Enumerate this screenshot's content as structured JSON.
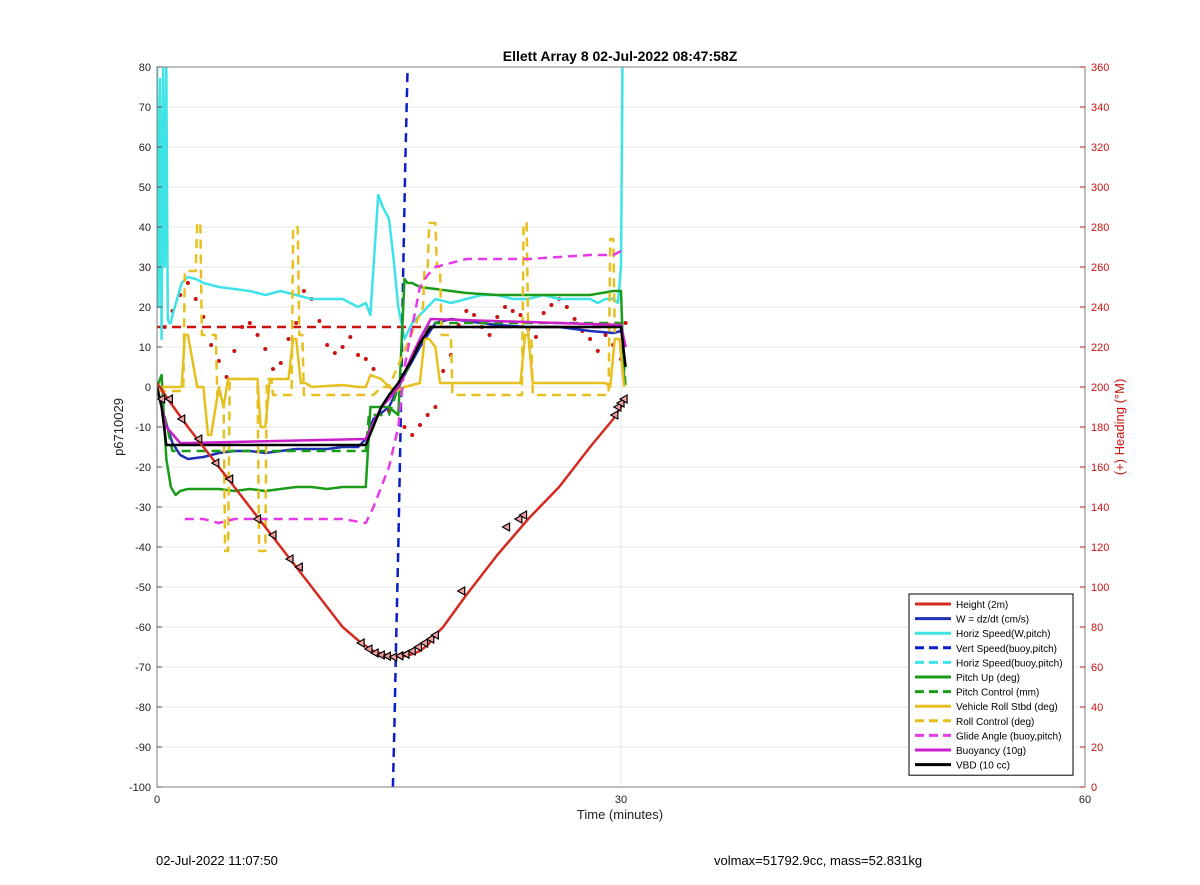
{
  "chart_data": {
    "type": "line",
    "title": "Ellett Array 8 02-Jul-2022 08:47:58Z",
    "xlabel": "Time (minutes)",
    "ylabel": "p6710029",
    "y2label": "(+) Heading (°M)",
    "xlim": [
      0,
      60
    ],
    "ylim": [
      -100,
      80
    ],
    "y2lim": [
      0,
      360
    ],
    "xticks": [
      0,
      30,
      60
    ],
    "yticks": [
      -100,
      -90,
      -80,
      -70,
      -60,
      -50,
      -40,
      -30,
      -20,
      -10,
      0,
      10,
      20,
      30,
      40,
      50,
      60,
      70,
      80
    ],
    "y2ticks": [
      0,
      20,
      40,
      60,
      80,
      100,
      120,
      140,
      160,
      180,
      200,
      220,
      240,
      260,
      280,
      300,
      320,
      340,
      360
    ],
    "grid": true,
    "legend_position": "bottom-right",
    "series": [
      {
        "name": "Height (2m)",
        "color": "#d42a1f",
        "style": "solid",
        "x": [
          0,
          0.7,
          2.0,
          4.0,
          6.0,
          8.0,
          10.0,
          12.0,
          13.2,
          14.0,
          15.0,
          15.5,
          16.0,
          16.5,
          17.0,
          17.5,
          18.0,
          18.5,
          20.0,
          22.0,
          24.0,
          26.0,
          28.0,
          29.5,
          30.0,
          30.3
        ],
        "y": [
          1,
          -3,
          -10,
          -20,
          -30,
          -40,
          -50,
          -60,
          -64,
          -66,
          -67.2,
          -67.5,
          -67.3,
          -66.8,
          -66,
          -64.5,
          -62,
          -60,
          -52,
          -42,
          -33,
          -25,
          -15,
          -8,
          -5,
          -3
        ]
      },
      {
        "name": "W = dz/dt (cm/s)",
        "color": "#1f2fb8",
        "style": "solid",
        "x": [
          0,
          0.5,
          1.0,
          1.5,
          2.0,
          3.0,
          4.0,
          5.0,
          6.0,
          7.0,
          8.0,
          9.0,
          10.0,
          11.0,
          12.0,
          13.0,
          13.5,
          14.0,
          15.0,
          16.0,
          17.0,
          18.0,
          19.0,
          20.0,
          22.0,
          24.0,
          26.0,
          28.0,
          29.5,
          30.0,
          30.3
        ],
        "y": [
          0,
          -8,
          -14,
          -17,
          -18,
          -17.5,
          -16.5,
          -16,
          -16,
          -16.5,
          -16,
          -15.5,
          -15.5,
          -15.5,
          -15,
          -15,
          -13,
          -8,
          -5,
          3,
          10,
          16,
          17,
          16.5,
          15.5,
          15,
          15,
          14,
          13.5,
          14,
          10
        ]
      },
      {
        "name": "Horiz Speed(W,pitch)",
        "color": "#3ee3e6",
        "style": "solid",
        "x": [
          0,
          0.1,
          0.2,
          0.3,
          0.4,
          0.5,
          0.6,
          0.7,
          0.8,
          0.9,
          1.0,
          1.3,
          1.6,
          2.0,
          2.5,
          3.0,
          4.0,
          5.0,
          6.0,
          7.0,
          8.0,
          9.0,
          10.0,
          11.0,
          12.0,
          13.0,
          13.5,
          13.8,
          14.0,
          14.3,
          14.6,
          15.0,
          15.3,
          15.6,
          16.0,
          16.5,
          17.0,
          18.0,
          19.0,
          20.0,
          21.0,
          22.0,
          23.0,
          24.0,
          25.0,
          26.0,
          27.0,
          28.0,
          28.5,
          29.0,
          29.5,
          29.8,
          30.0,
          30.1
        ],
        "y": [
          80,
          20,
          77,
          12,
          80,
          30,
          80,
          17,
          16,
          16,
          18,
          22,
          26,
          27.5,
          27,
          26,
          25,
          24.5,
          24,
          23,
          24,
          23,
          22,
          22,
          22,
          20,
          21,
          18,
          30,
          48,
          45,
          42,
          32,
          20,
          12,
          16,
          18,
          22,
          21,
          22,
          23,
          23,
          22,
          22,
          23,
          22,
          22,
          22,
          21,
          22,
          22,
          21,
          30,
          80
        ]
      },
      {
        "name": "Vert Speed(buoy,pitch)",
        "color": "#0a1fc8",
        "style": "dashed",
        "x": [
          15.25,
          15.35,
          15.45,
          15.6,
          15.75,
          15.9,
          16.05,
          16.2
        ],
        "y": [
          -100,
          -85,
          -65,
          -40,
          -10,
          25,
          55,
          80
        ]
      },
      {
        "name": "Horiz Speed(buoy,pitch)",
        "color": "#3ee3e6",
        "style": "dashed",
        "x": [],
        "y": []
      },
      {
        "name": "Pitch Up (deg)",
        "color": "#1a9c1a",
        "style": "solid",
        "x": [
          0,
          0.3,
          0.6,
          0.9,
          1.2,
          1.5,
          2.0,
          3.0,
          4.0,
          5.0,
          6.0,
          7.0,
          8.0,
          9.0,
          10.0,
          11.0,
          12.0,
          13.0,
          13.5,
          13.8,
          14.5,
          15.0,
          15.3,
          15.6,
          16.0,
          16.2,
          16.5,
          17.0,
          18.0,
          19.0,
          20.0,
          22.0,
          24.0,
          26.0,
          28.0,
          29.5,
          30.0,
          30.2
        ],
        "y": [
          0,
          3,
          -18,
          -25,
          -27,
          -26,
          -25.5,
          -25.5,
          -25.5,
          -26,
          -25.5,
          -26,
          -25.5,
          -25,
          -25,
          -25.5,
          -25,
          -25,
          -25,
          -5,
          -5,
          -5,
          -6,
          -7,
          27,
          26,
          26,
          25,
          24.5,
          24,
          23.5,
          23,
          23,
          23,
          23,
          24,
          24,
          2
        ]
      },
      {
        "name": "Pitch Control (mm)",
        "color": "#1a9c1a",
        "style": "dashed",
        "x": [
          0,
          0.6,
          1.0,
          2.0,
          13.5,
          13.7,
          15.0,
          15.6,
          16.5,
          17.0,
          17.7,
          30.0,
          30.3
        ],
        "y": [
          0,
          -9,
          -16,
          -16,
          -16,
          -7,
          -7,
          0,
          7,
          11,
          16,
          16,
          0
        ]
      },
      {
        "name": "Vehicle Roll Stbd (deg)",
        "color": "#e6c020",
        "style": "solid",
        "x": [
          0,
          0.6,
          1.0,
          1.3,
          1.6,
          1.8,
          2.0,
          2.6,
          3.0,
          3.3,
          3.5,
          4.0,
          4.3,
          4.6,
          4.8,
          6.0,
          6.5,
          6.7,
          7.0,
          7.3,
          8.5,
          8.8,
          9.0,
          9.3,
          9.6,
          10.0,
          12.0,
          13.0,
          13.5,
          13.8,
          14.5,
          15.0,
          15.5,
          16.0,
          17.0,
          17.3,
          17.6,
          18.0,
          18.3,
          18.6,
          19.0,
          20.0,
          22.0,
          23.5,
          23.8,
          24.0,
          24.3,
          24.6,
          26.0,
          28.0,
          29.0,
          29.3,
          29.6,
          29.9,
          30.2
        ],
        "y": [
          0,
          0,
          0,
          0,
          0,
          13,
          13,
          0,
          0,
          -12,
          -12,
          0,
          -5,
          2,
          2,
          2,
          2,
          -10,
          -10,
          2,
          2,
          12,
          12,
          1,
          1,
          0,
          0.5,
          0,
          0,
          3,
          2,
          0,
          -1,
          0,
          1,
          12,
          12,
          10,
          1,
          1,
          1,
          1,
          1,
          1,
          13,
          13,
          1,
          1,
          1,
          1,
          1,
          0,
          12,
          12,
          0
        ]
      },
      {
        "name": "Roll Control (deg)",
        "color": "#e6c020",
        "style": "dashed",
        "x": [
          0,
          1.7,
          1.8,
          2.5,
          2.6,
          2.8,
          2.9,
          3.8,
          3.9,
          4.3,
          4.4,
          4.6,
          4.7,
          6.5,
          6.6,
          7.0,
          7.1,
          7.4,
          7.5,
          8.7,
          8.8,
          9.1,
          9.2,
          9.4,
          9.5,
          14.0,
          14.5,
          15.0,
          17.2,
          17.3,
          17.5,
          17.6,
          18.0,
          18.1,
          18.3,
          18.4,
          19.0,
          19.1,
          19.7,
          19.8,
          23.6,
          23.7,
          23.9,
          24.0,
          24.2,
          24.3,
          29.2,
          29.3,
          29.5,
          29.6
        ],
        "y": [
          -1,
          -1,
          29,
          29,
          41,
          41,
          13,
          13,
          -2,
          -2,
          -41,
          -41,
          2,
          2,
          -41,
          -41,
          2,
          2,
          -2,
          -2,
          40,
          40,
          13,
          13,
          -2,
          -2,
          0,
          0,
          20,
          30,
          30,
          41,
          41,
          30,
          30,
          13,
          13,
          -2,
          -2,
          -2,
          -2,
          41,
          41,
          13,
          13,
          -2,
          -2,
          37,
          37,
          13
        ]
      },
      {
        "name": "Glide Angle (buoy,pitch)",
        "color": "#e63ae6",
        "style": "dashed",
        "x": [
          1.8,
          3.0,
          4.0,
          5.0,
          6.0,
          7.0,
          8.0,
          9.0,
          10.0,
          11.0,
          12.0,
          13.5,
          14.0,
          15.0,
          15.6,
          16.0,
          17.0,
          17.5,
          18.0,
          20.0,
          22.0,
          24.0,
          26.0,
          28.0,
          29.5,
          30.0
        ],
        "y": [
          -33,
          -33,
          -34,
          -33,
          -33,
          -33,
          -33,
          -33,
          -33,
          -33,
          -33,
          -34,
          -30,
          -20,
          -10,
          5,
          25,
          28,
          30,
          32,
          32,
          32,
          32.5,
          33,
          33,
          34
        ]
      },
      {
        "name": "Buoyancy (10g)",
        "color": "#cc1fcc",
        "style": "solid",
        "x": [
          0,
          0.6,
          1.5,
          2.0,
          13.5,
          14.5,
          15.0,
          15.6,
          16.5,
          17.0,
          17.7,
          30.0,
          30.3
        ],
        "y": [
          0,
          -10,
          -14,
          -14,
          -13,
          -5,
          -3,
          0,
          8,
          12,
          17,
          15.5,
          10
        ]
      },
      {
        "name": "VBD (10 cc)",
        "color": "#000000",
        "style": "solid",
        "x": [
          0,
          0.3,
          0.6,
          13.5,
          14.5,
          15.0,
          15.6,
          16.5,
          17.0,
          17.7,
          30.0,
          30.3
        ],
        "y": [
          0,
          -5,
          -14.5,
          -14.5,
          -5,
          -2,
          1,
          7,
          11,
          15,
          15,
          5
        ]
      },
      {
        "name": "Heading",
        "color": "#cc1111",
        "style": "dashed",
        "axis": "right",
        "x": [
          0,
          30
        ],
        "y": [
          230,
          230
        ]
      },
      {
        "name": "Heading samples",
        "color": "#cc1111",
        "style": "dots",
        "axis": "right",
        "legend": false,
        "x": [
          0.5,
          1,
          1.5,
          2,
          2.5,
          3,
          3.5,
          4,
          4.5,
          5,
          5.5,
          6,
          6.5,
          7,
          7.5,
          8,
          8.5,
          9,
          9.5,
          10,
          10.5,
          11,
          11.5,
          12,
          12.5,
          13,
          13.5,
          14,
          15,
          16,
          16.5,
          17,
          17.5,
          18,
          18.5,
          19,
          19.5,
          20,
          20.5,
          21,
          21.5,
          22,
          22.5,
          23,
          23.5,
          24,
          24.5,
          25,
          25.5,
          26,
          26.5,
          27,
          27.5,
          28,
          28.5,
          29,
          29.5,
          30,
          30.3
        ],
        "y": [
          230,
          238,
          246,
          252,
          244,
          235,
          221,
          213,
          205,
          218,
          230,
          232,
          226,
          219,
          209,
          212,
          224,
          232,
          248,
          244,
          233,
          221,
          217,
          220,
          225,
          216,
          214,
          209,
          188,
          180,
          176,
          181,
          186,
          190,
          208,
          216,
          231,
          238,
          236,
          230,
          226,
          235,
          240,
          238,
          236,
          229,
          225,
          237,
          241,
          244,
          240,
          234,
          228,
          224,
          218,
          226,
          221,
          214,
          232
        ]
      },
      {
        "name": "Waypoint markers",
        "color": "#000000",
        "style": "markers",
        "legend": false,
        "x": [
          0.3,
          0.8,
          1.6,
          2.7,
          3.8,
          4.7,
          6.5,
          7.5,
          8.6,
          9.2,
          13.2,
          13.7,
          14.1,
          14.5,
          14.9,
          15.3,
          15.7,
          16.1,
          16.5,
          16.9,
          17.3,
          17.7,
          18.0,
          19.7,
          22.6,
          23.4,
          23.7,
          29.6,
          29.8,
          30.0,
          30.2
        ],
        "y": [
          -3,
          -3,
          -8,
          -13,
          -19,
          -23,
          -33,
          -37,
          -43,
          -45,
          -64,
          -65.5,
          -66.5,
          -67,
          -67.3,
          -67.5,
          -67.2,
          -66.8,
          -66,
          -65,
          -64,
          -63,
          -62,
          -51,
          -35,
          -33,
          -32,
          -7,
          -5,
          -4,
          -3
        ]
      }
    ]
  },
  "footer": {
    "left": "02-Jul-2022 11:07:50",
    "right": "volmax=51792.9cc, mass=52.831kg"
  }
}
